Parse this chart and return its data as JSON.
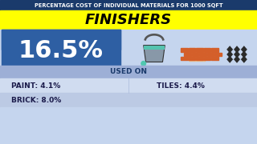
{
  "title_bar_text": "PERCENTAGE COST OF INDIVIDUAL MATERIALS FOR 1000 SQFT",
  "title_bar_bg": "#1a3a6b",
  "title_bar_text_color": "#ffffff",
  "category_text": "FINISHERS",
  "category_bg": "#ffff00",
  "category_text_color": "#000000",
  "percentage_text": "16.5%",
  "percentage_bg": "#2e5fa3",
  "percentage_text_color": "#ffffff",
  "used_on_text": "USED ON",
  "used_on_bg": "#9dafd6",
  "used_on_text_color": "#1a3a6b",
  "main_content_bg": "#c5d5ee",
  "item_text_color": "#1a1a4a",
  "row_bg_1": "#d0dcf0",
  "row_bg_2": "#bccae4",
  "paint_label": "PAINT: 4.1%",
  "tiles_label": "TILES: 4.4%",
  "brick_label": "BRICK: 8.0%",
  "icon_paint_body": "#9aa8b8",
  "icon_paint_teal": "#4fc4b0",
  "icon_brick_color": "#d45f2a",
  "icon_tile_color": "#2a2a2a",
  "border_color": "#1a3a6b"
}
